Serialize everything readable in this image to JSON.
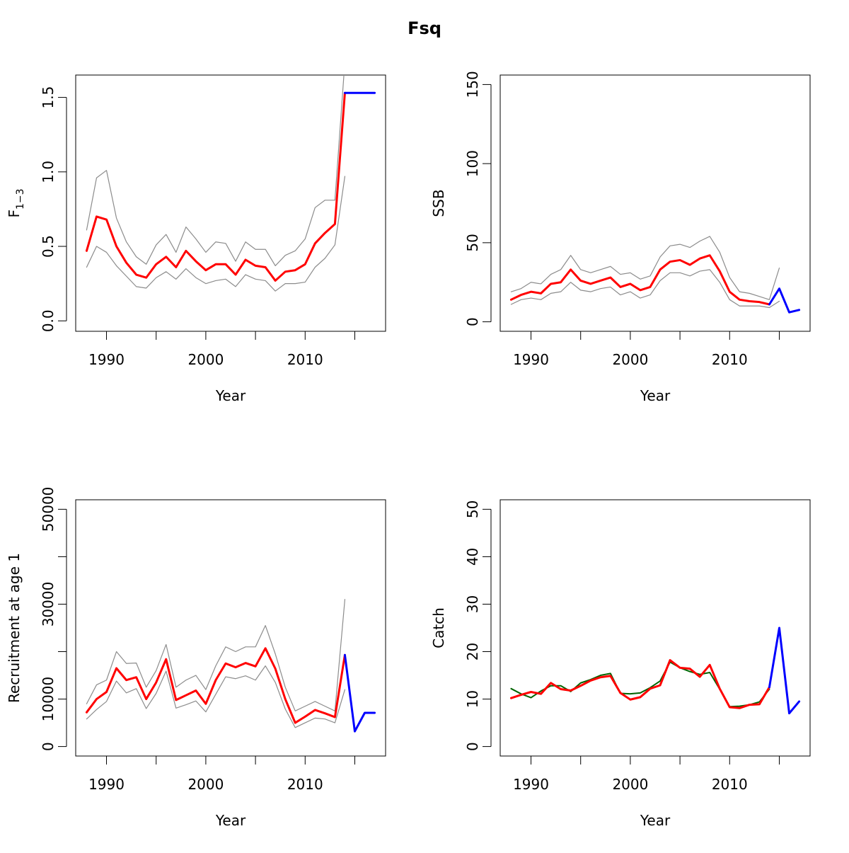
{
  "title": "Fsq",
  "colors": {
    "estimate": "#ff0000",
    "ci": "#8c8c8c",
    "forecast": "#0000ff",
    "observed_catch": "#006400",
    "axis": "#000000"
  },
  "chart_data": [
    {
      "id": "f",
      "type": "line",
      "title": "",
      "xlabel": "Year",
      "ylabel_main": "F",
      "ylabel_sub": "1−3",
      "xlim": [
        1986.9,
        2018.1
      ],
      "ylim": [
        -0.07,
        1.65
      ],
      "x_ticks": [
        1990,
        2000,
        2010
      ],
      "x_minor_ticks": [
        1995,
        2005,
        2015
      ],
      "x_tick_labels": [
        "1990",
        "2000",
        "2010"
      ],
      "y_ticks": [
        0.0,
        0.5,
        1.0,
        1.5
      ],
      "y_tick_labels": [
        "0.0",
        "0.5",
        "1.0",
        "1.5"
      ],
      "series": [
        {
          "role": "ci",
          "x": [
            1988,
            1989,
            1990,
            1991,
            1992,
            1993,
            1994,
            1995,
            1996,
            1997,
            1998,
            1999,
            2000,
            2001,
            2002,
            2003,
            2004,
            2005,
            2006,
            2007,
            2008,
            2009,
            2010,
            2011,
            2012,
            2013,
            2014
          ],
          "y": [
            0.61,
            0.96,
            1.01,
            0.69,
            0.53,
            0.43,
            0.38,
            0.51,
            0.58,
            0.46,
            0.63,
            0.55,
            0.46,
            0.53,
            0.52,
            0.4,
            0.53,
            0.48,
            0.48,
            0.37,
            0.44,
            0.47,
            0.55,
            0.76,
            0.81,
            0.81,
            1.74
          ]
        },
        {
          "role": "ci",
          "x": [
            1988,
            1989,
            1990,
            1991,
            1992,
            1993,
            1994,
            1995,
            1996,
            1997,
            1998,
            1999,
            2000,
            2001,
            2002,
            2003,
            2004,
            2005,
            2006,
            2007,
            2008,
            2009,
            2010,
            2011,
            2012,
            2013,
            2014
          ],
          "y": [
            0.36,
            0.5,
            0.46,
            0.37,
            0.3,
            0.23,
            0.22,
            0.29,
            0.33,
            0.28,
            0.35,
            0.29,
            0.25,
            0.27,
            0.28,
            0.23,
            0.31,
            0.28,
            0.27,
            0.2,
            0.25,
            0.25,
            0.26,
            0.36,
            0.42,
            0.51,
            0.97
          ]
        },
        {
          "role": "estimate",
          "x": [
            1988,
            1989,
            1990,
            1991,
            1992,
            1993,
            1994,
            1995,
            1996,
            1997,
            1998,
            1999,
            2000,
            2001,
            2002,
            2003,
            2004,
            2005,
            2006,
            2007,
            2008,
            2009,
            2010,
            2011,
            2012,
            2013,
            2014
          ],
          "y": [
            0.47,
            0.7,
            0.68,
            0.5,
            0.39,
            0.31,
            0.29,
            0.38,
            0.43,
            0.36,
            0.47,
            0.4,
            0.34,
            0.38,
            0.38,
            0.31,
            0.41,
            0.37,
            0.36,
            0.27,
            0.33,
            0.34,
            0.38,
            0.52,
            0.59,
            0.65,
            1.53
          ]
        },
        {
          "role": "forecast",
          "x": [
            2014,
            2015,
            2016,
            2017
          ],
          "y": [
            1.53,
            1.53,
            1.53,
            1.53
          ]
        }
      ]
    },
    {
      "id": "ssb",
      "type": "line",
      "title": "",
      "xlabel": "Year",
      "ylabel_main": "SSB",
      "ylabel_sub": "",
      "xlim": [
        1986.9,
        2018.1
      ],
      "ylim": [
        -6,
        156
      ],
      "x_ticks": [
        1990,
        2000,
        2010
      ],
      "x_minor_ticks": [
        1995,
        2005,
        2015
      ],
      "x_tick_labels": [
        "1990",
        "2000",
        "2010"
      ],
      "y_ticks": [
        0,
        50,
        100,
        150
      ],
      "y_tick_labels": [
        "0",
        "50",
        "100",
        "150"
      ],
      "series": [
        {
          "role": "ci",
          "x": [
            1988,
            1989,
            1990,
            1991,
            1992,
            1993,
            1994,
            1995,
            1996,
            1997,
            1998,
            1999,
            2000,
            2001,
            2002,
            2003,
            2004,
            2005,
            2006,
            2007,
            2008,
            2009,
            2010,
            2011,
            2012,
            2013,
            2014,
            2015
          ],
          "y": [
            19,
            21,
            25,
            24,
            30,
            33,
            42,
            33,
            31,
            33,
            35,
            30,
            31,
            27,
            29,
            41,
            48,
            49,
            47,
            51,
            54,
            44,
            28,
            19,
            18,
            16,
            14,
            34
          ]
        },
        {
          "role": "ci",
          "x": [
            1988,
            1989,
            1990,
            1991,
            1992,
            1993,
            1994,
            1995,
            1996,
            1997,
            1998,
            1999,
            2000,
            2001,
            2002,
            2003,
            2004,
            2005,
            2006,
            2007,
            2008,
            2009,
            2010,
            2011,
            2012,
            2013,
            2014,
            2015
          ],
          "y": [
            11,
            14,
            15,
            14,
            18,
            19,
            25,
            20,
            19,
            21,
            22,
            17,
            19,
            15,
            17,
            26,
            31,
            31,
            29,
            32,
            33,
            25,
            14,
            10,
            10,
            10,
            9,
            13
          ]
        },
        {
          "role": "estimate",
          "x": [
            1988,
            1989,
            1990,
            1991,
            1992,
            1993,
            1994,
            1995,
            1996,
            1997,
            1998,
            1999,
            2000,
            2001,
            2002,
            2003,
            2004,
            2005,
            2006,
            2007,
            2008,
            2009,
            2010,
            2011,
            2012,
            2013,
            2014
          ],
          "y": [
            14,
            17,
            19,
            18,
            24,
            25,
            33,
            26,
            24,
            26,
            28,
            22,
            24,
            20,
            22,
            33,
            38,
            39,
            36,
            40,
            42,
            32,
            19,
            14,
            13,
            12.5,
            11
          ]
        },
        {
          "role": "forecast",
          "x": [
            2014,
            2015,
            2016,
            2017
          ],
          "y": [
            11,
            21,
            6,
            7.5
          ]
        }
      ]
    },
    {
      "id": "recruitment",
      "type": "line",
      "title": "",
      "xlabel": "Year",
      "ylabel_main": "Recruitment at age 1",
      "ylabel_sub": "",
      "xlim": [
        1986.9,
        2018.1
      ],
      "ylim": [
        -2000,
        52000
      ],
      "x_ticks": [
        1990,
        2000,
        2010
      ],
      "x_minor_ticks": [
        1995,
        2005,
        2015
      ],
      "x_tick_labels": [
        "1990",
        "2000",
        "2010"
      ],
      "y_ticks": [
        0,
        10000,
        20000,
        30000,
        40000,
        50000
      ],
      "y_tick_labels": [
        "0",
        "10000",
        "",
        "30000",
        "",
        "50000"
      ],
      "series": [
        {
          "role": "ci",
          "x": [
            1988,
            1989,
            1990,
            1991,
            1992,
            1993,
            1994,
            1995,
            1996,
            1997,
            1998,
            1999,
            2000,
            2001,
            2002,
            2003,
            2004,
            2005,
            2006,
            2007,
            2008,
            2009,
            2010,
            2011,
            2012,
            2013,
            2014
          ],
          "y": [
            9000,
            13000,
            14000,
            20000,
            17500,
            17600,
            12500,
            16000,
            21500,
            12500,
            14000,
            15000,
            12000,
            17000,
            21000,
            20000,
            21000,
            21000,
            25500,
            19500,
            12500,
            7500,
            8500,
            9500,
            8500,
            7500,
            31000
          ]
        },
        {
          "role": "ci",
          "x": [
            1988,
            1989,
            1990,
            1991,
            1992,
            1993,
            1994,
            1995,
            1996,
            1997,
            1998,
            1999,
            2000,
            2001,
            2002,
            2003,
            2004,
            2005,
            2006,
            2007,
            2008,
            2009,
            2010,
            2011,
            2012,
            2013,
            2014
          ],
          "y": [
            5800,
            7800,
            9500,
            13800,
            11300,
            12200,
            8000,
            11200,
            15900,
            8100,
            8800,
            9600,
            7300,
            11000,
            14700,
            14300,
            14900,
            14000,
            17000,
            13500,
            7900,
            4000,
            5000,
            6000,
            5800,
            5000,
            12000
          ]
        },
        {
          "role": "estimate",
          "x": [
            1988,
            1989,
            1990,
            1991,
            1992,
            1993,
            1994,
            1995,
            1996,
            1997,
            1998,
            1999,
            2000,
            2001,
            2002,
            2003,
            2004,
            2005,
            2006,
            2007,
            2008,
            2009,
            2010,
            2011,
            2012,
            2013,
            2014
          ],
          "y": [
            7200,
            10000,
            11500,
            16500,
            14000,
            14600,
            10000,
            13500,
            18400,
            9800,
            10800,
            11800,
            9000,
            14000,
            17500,
            16700,
            17600,
            16900,
            20700,
            16400,
            10000,
            5000,
            6300,
            7700,
            7000,
            6200,
            19300
          ]
        },
        {
          "role": "forecast",
          "x": [
            2014,
            2015,
            2016,
            2017
          ],
          "y": [
            19300,
            3200,
            7100,
            7100
          ]
        }
      ]
    },
    {
      "id": "catch",
      "type": "line",
      "title": "",
      "xlabel": "Year",
      "ylabel_main": "Catch",
      "ylabel_sub": "",
      "xlim": [
        1986.9,
        2018.1
      ],
      "ylim": [
        -2,
        52
      ],
      "x_ticks": [
        1990,
        2000,
        2010
      ],
      "x_minor_ticks": [
        1995,
        2005,
        2015
      ],
      "x_tick_labels": [
        "1990",
        "2000",
        "2010"
      ],
      "y_ticks": [
        0,
        10,
        20,
        30,
        40,
        50
      ],
      "y_tick_labels": [
        "0",
        "10",
        "20",
        "30",
        "40",
        "50"
      ],
      "series": [
        {
          "role": "observed_catch",
          "x": [
            1988,
            1989,
            1990,
            1991,
            1992,
            1993,
            1994,
            1995,
            1996,
            1997,
            1998,
            1999,
            2000,
            2001,
            2002,
            2003,
            2004,
            2005,
            2006,
            2007,
            2008,
            2009,
            2010,
            2011,
            2012,
            2013,
            2014
          ],
          "y": [
            12.2,
            11.1,
            10.3,
            11.7,
            12.8,
            12.8,
            11.6,
            13.4,
            14.1,
            15.0,
            15.4,
            11.2,
            11.1,
            11.3,
            12.4,
            13.8,
            17.8,
            16.6,
            15.8,
            15.2,
            15.6,
            12.1,
            8.4,
            8.5,
            8.8,
            9.4,
            12.1
          ]
        },
        {
          "role": "estimate",
          "x": [
            1988,
            1989,
            1990,
            1991,
            1992,
            1993,
            1994,
            1995,
            1996,
            1997,
            1998,
            1999,
            2000,
            2001,
            2002,
            2003,
            2004,
            2005,
            2006,
            2007,
            2008,
            2009,
            2010,
            2011,
            2012,
            2013,
            2014
          ],
          "y": [
            10.2,
            10.9,
            11.5,
            11.1,
            13.4,
            12.1,
            11.8,
            12.8,
            13.9,
            14.6,
            14.9,
            11.3,
            9.9,
            10.4,
            12.2,
            12.9,
            18.2,
            16.6,
            16.4,
            14.7,
            17.2,
            12.2,
            8.3,
            8.1,
            8.8,
            8.9,
            12.5
          ]
        },
        {
          "role": "forecast",
          "x": [
            2014,
            2015,
            2016,
            2017
          ],
          "y": [
            12.5,
            25.0,
            7.0,
            9.5
          ]
        }
      ]
    }
  ]
}
